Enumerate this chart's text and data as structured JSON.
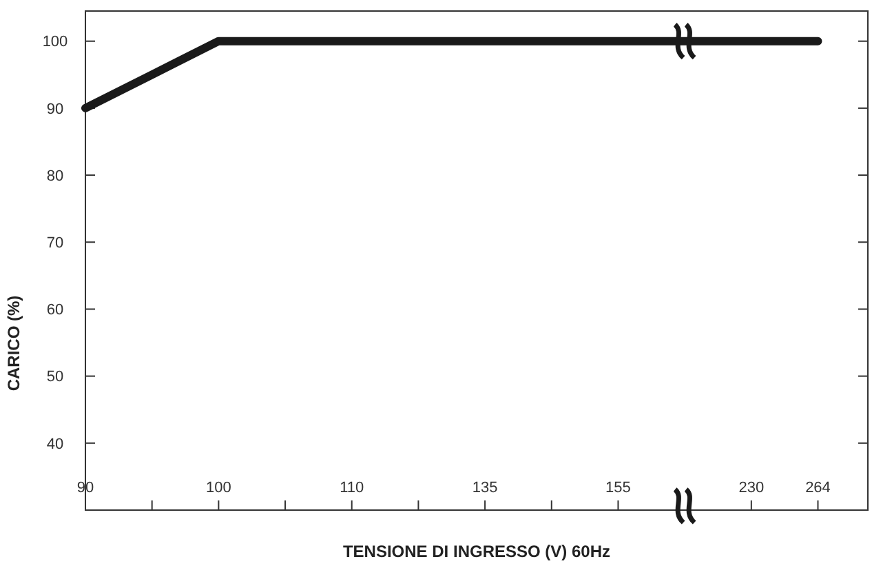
{
  "chart_data": {
    "type": "line",
    "xlabel": "TENSIONE DI INGRESSO (V) 60Hz",
    "ylabel": "CARICO (%)",
    "categories": [
      "90",
      null,
      "100",
      null,
      "110",
      null,
      "135",
      null,
      "155",
      null,
      "230",
      "264"
    ],
    "series": [
      {
        "color": "#1a1a1a",
        "values": [
          90,
          95,
          100,
          100,
          100,
          100,
          100,
          100,
          100,
          100,
          100,
          100
        ]
      }
    ],
    "ylim": [
      30,
      104.5
    ],
    "yticks": [
      40,
      50,
      60,
      70,
      80,
      90,
      100
    ],
    "grid": false
  }
}
